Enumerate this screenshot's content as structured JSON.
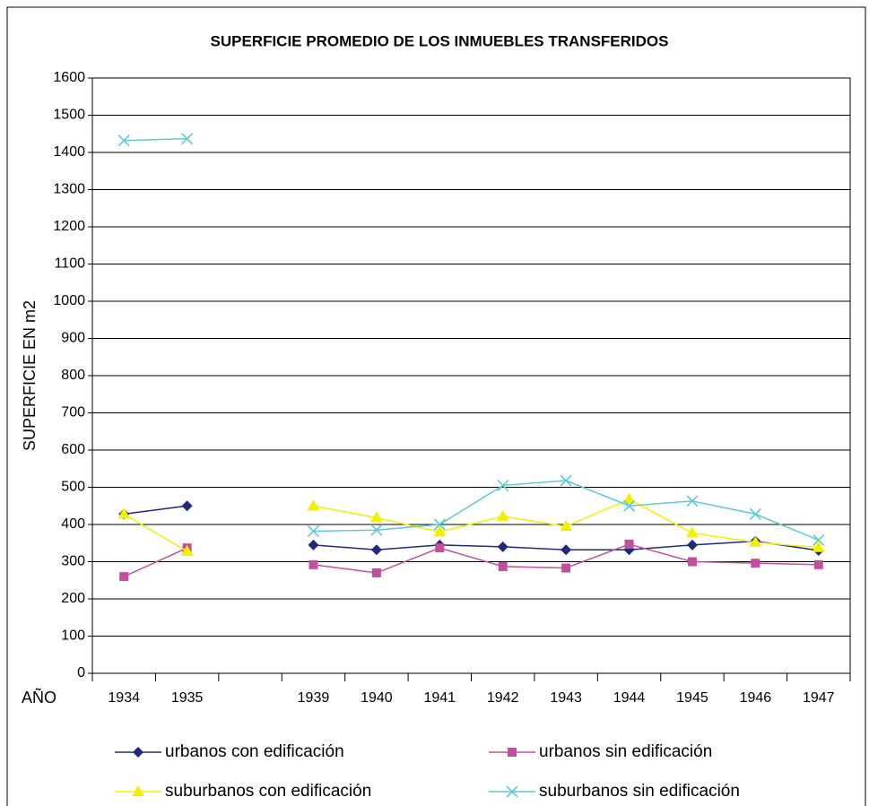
{
  "chart_data": {
    "type": "line",
    "title": "SUPERFICIE PROMEDIO DE LOS INMUEBLES TRANSFERIDOS",
    "y_label": "SUPERFICIE EN m2",
    "x_label": "AÑO",
    "categories": [
      "1934",
      "1935",
      null,
      "1939",
      "1940",
      "1941",
      "1942",
      "1943",
      "1944",
      "1945",
      "1946",
      "1947"
    ],
    "ylim": [
      0,
      1600
    ],
    "yticks": [
      0,
      100,
      200,
      300,
      400,
      500,
      600,
      700,
      800,
      900,
      1000,
      1100,
      1200,
      1300,
      1400,
      1500,
      1600
    ],
    "grid": true,
    "legend": "bottom",
    "series": [
      {
        "name": "urbanos con edificación",
        "color": "#1f2a7a",
        "marker": "diamond",
        "values": [
          428,
          450,
          null,
          345,
          332,
          345,
          340,
          332,
          332,
          345,
          355,
          330
        ]
      },
      {
        "name": "urbanos sin edificación",
        "color": "#c24f9e",
        "marker": "square",
        "values": [
          260,
          337,
          null,
          292,
          270,
          337,
          287,
          283,
          347,
          300,
          296,
          292
        ]
      },
      {
        "name": "suburbanos con edificación",
        "color": "#f2f000",
        "marker": "triangle",
        "values": [
          428,
          328,
          null,
          450,
          418,
          380,
          422,
          395,
          468,
          377,
          352,
          338
        ]
      },
      {
        "name": "suburbanos sin edificación",
        "color": "#5fc8d8",
        "marker": "x",
        "values": [
          1432,
          1437,
          null,
          382,
          385,
          400,
          505,
          518,
          450,
          463,
          428,
          358
        ]
      }
    ]
  }
}
